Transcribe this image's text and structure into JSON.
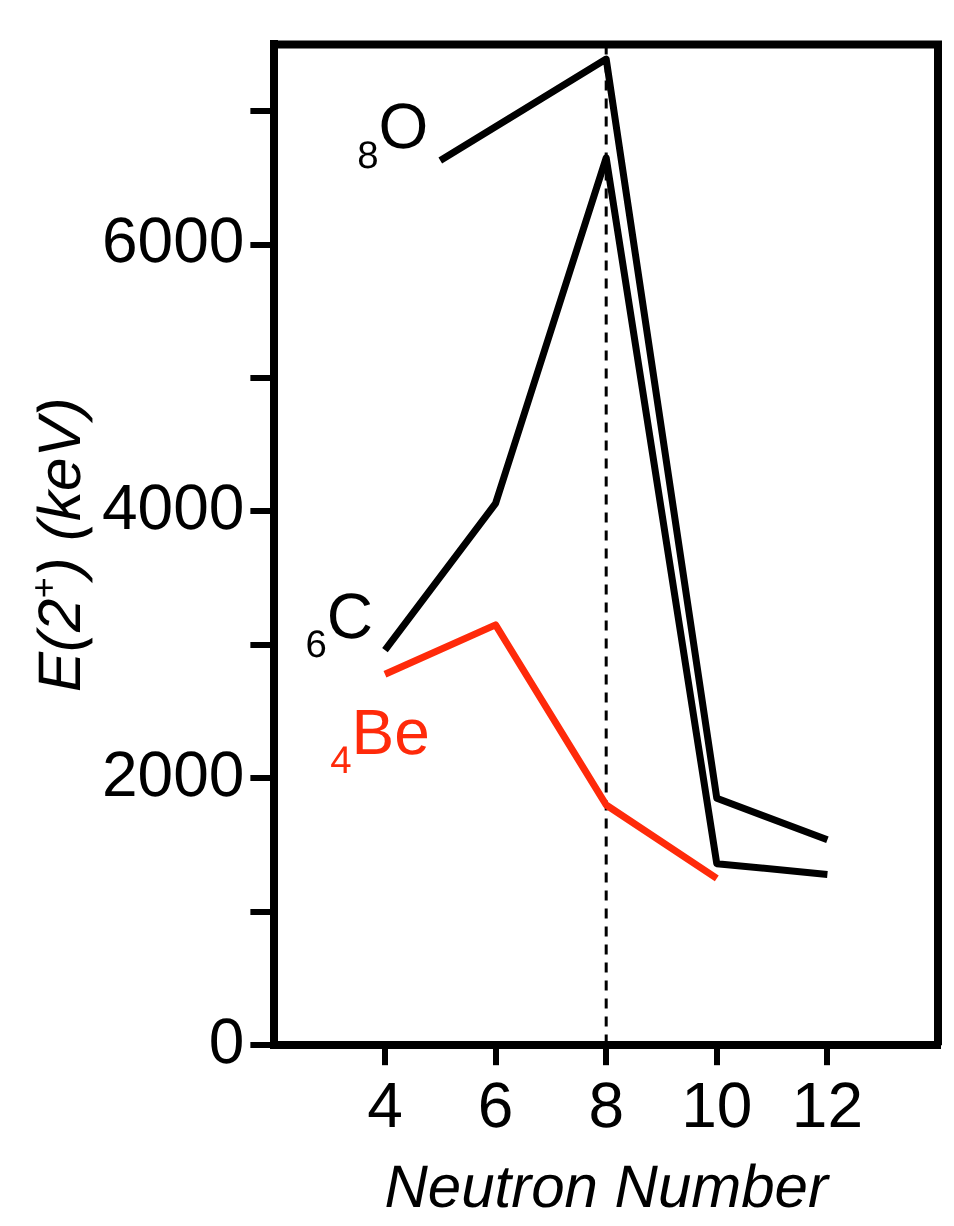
{
  "chart_data": {
    "type": "line",
    "xlabel": "Neutron Number",
    "ylabel": "E(2$^{+}$) (keV)",
    "xlim": [
      2,
      14
    ],
    "xticks": [
      4,
      6,
      8,
      10,
      12
    ],
    "ylim": [
      0,
      7500
    ],
    "yticks": [
      0,
      {
        "value": 1000,
        "label": null
      },
      2000,
      {
        "value": 3000,
        "label": null
      },
      4000,
      {
        "value": 5000,
        "label": null
      },
      6000,
      {
        "value": 7000,
        "label": null
      }
    ],
    "grid": false,
    "legend": false,
    "marker": "none",
    "line_style": "solid",
    "series": [
      {
        "name": "$_{8}$O",
        "color": "#000000",
        "x": [
          5,
          8,
          10,
          12
        ],
        "values": [
          6630,
          7390,
          1850,
          1540
        ]
      },
      {
        "name": "$_{6}$C",
        "color": "#000000",
        "x": [
          4,
          6,
          8,
          10,
          12
        ],
        "values": [
          2960,
          4060,
          6650,
          1360,
          1280
        ]
      },
      {
        "name": "$_{4}$Be",
        "color": "#ff2a0a",
        "x": [
          4,
          6,
          8,
          10
        ],
        "values": [
          2780,
          3150,
          1800,
          1250
        ]
      }
    ],
    "ref_lines": [
      {
        "axis": "x",
        "value": 8,
        "color": "#000000",
        "line_style": "dashed"
      }
    ]
  }
}
